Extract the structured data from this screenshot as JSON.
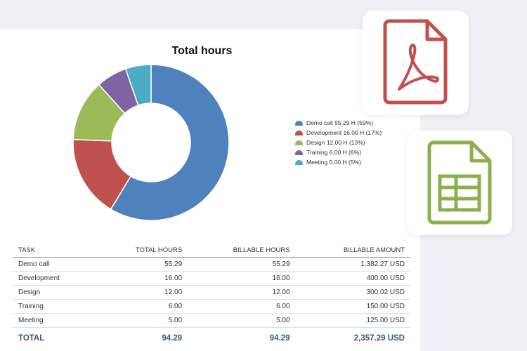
{
  "colors": {
    "background": "#eef1f6",
    "accent_total": "#3a5a7a",
    "pdf_red": "#c0504d",
    "sheet_green": "#8bb04e"
  },
  "icons": {
    "pdf": "pdf-file-icon",
    "spreadsheet": "spreadsheet-file-icon"
  },
  "chart_data": {
    "type": "pie",
    "style": "donut",
    "title": "Total hours",
    "legend_position": "right",
    "slices": [
      {
        "label": "Demo call 55.29 H (59%)",
        "value": 55.29,
        "color": "#4f81bd"
      },
      {
        "label": "Development 16.00 H (17%)",
        "value": 16.0,
        "color": "#c0504d"
      },
      {
        "label": "Design 12.00 H (13%)",
        "value": 12.0,
        "color": "#9bbb59"
      },
      {
        "label": "Training 6.00 H (6%)",
        "value": 6.0,
        "color": "#8064a2"
      },
      {
        "label": "Meeting 5.00 H (5%)",
        "value": 5.0,
        "color": "#4bacc6"
      }
    ]
  },
  "table": {
    "headers": [
      "TASK",
      "TOTAL HOURS",
      "BILLABLE HOURS",
      "BILLABLE AMOUNT"
    ],
    "rows": [
      [
        "Demo call",
        "55.29",
        "55.29",
        "1,382.27 USD"
      ],
      [
        "Development",
        "16.00",
        "16.00",
        "400.00 USD"
      ],
      [
        "Design",
        "12.00",
        "12.00",
        "300.02 USD"
      ],
      [
        "Training",
        "6.00",
        "6.00",
        "150.00 USD"
      ],
      [
        "Meeting",
        "5.00",
        "5.00",
        "125.00 USD"
      ]
    ],
    "total": [
      "TOTAL",
      "94.29",
      "94.29",
      "2,357.29 USD"
    ]
  }
}
